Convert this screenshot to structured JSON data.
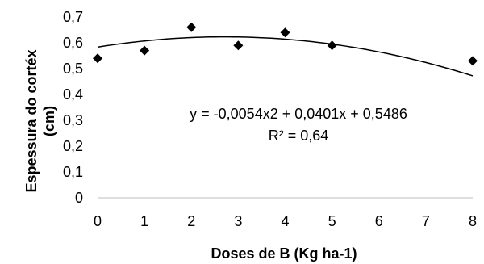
{
  "chart_data": {
    "type": "scatter",
    "title": "",
    "xlabel": "Doses de B (Kg ha-1)",
    "ylabel_lines": [
      "Espessura do cortéx",
      "(cm)"
    ],
    "x_ticks": [
      "0",
      "1",
      "2",
      "3",
      "4",
      "5",
      "6",
      "7",
      "8"
    ],
    "y_ticks": [
      "0",
      "0,1",
      "0,2",
      "0,3",
      "0,4",
      "0,5",
      "0,6",
      "0,7"
    ],
    "ylim": [
      0,
      0.7
    ],
    "xlim": [
      0,
      8
    ],
    "grid": false,
    "points": [
      {
        "x": 0,
        "y": 0.54
      },
      {
        "x": 1,
        "y": 0.57
      },
      {
        "x": 2,
        "y": 0.66
      },
      {
        "x": 3,
        "y": 0.59
      },
      {
        "x": 4,
        "y": 0.64
      },
      {
        "x": 5,
        "y": 0.59
      },
      {
        "x": 8,
        "y": 0.53
      }
    ],
    "trendline": {
      "type": "polynomial",
      "a": -0.0054,
      "b": 0.0401,
      "c": 0.5486
    },
    "equation_text": "y = -0,0054x2  + 0,0401x  + 0,5486",
    "r2_text": "R² = 0,64",
    "marker_color": "#000000",
    "line_color": "#000000"
  }
}
